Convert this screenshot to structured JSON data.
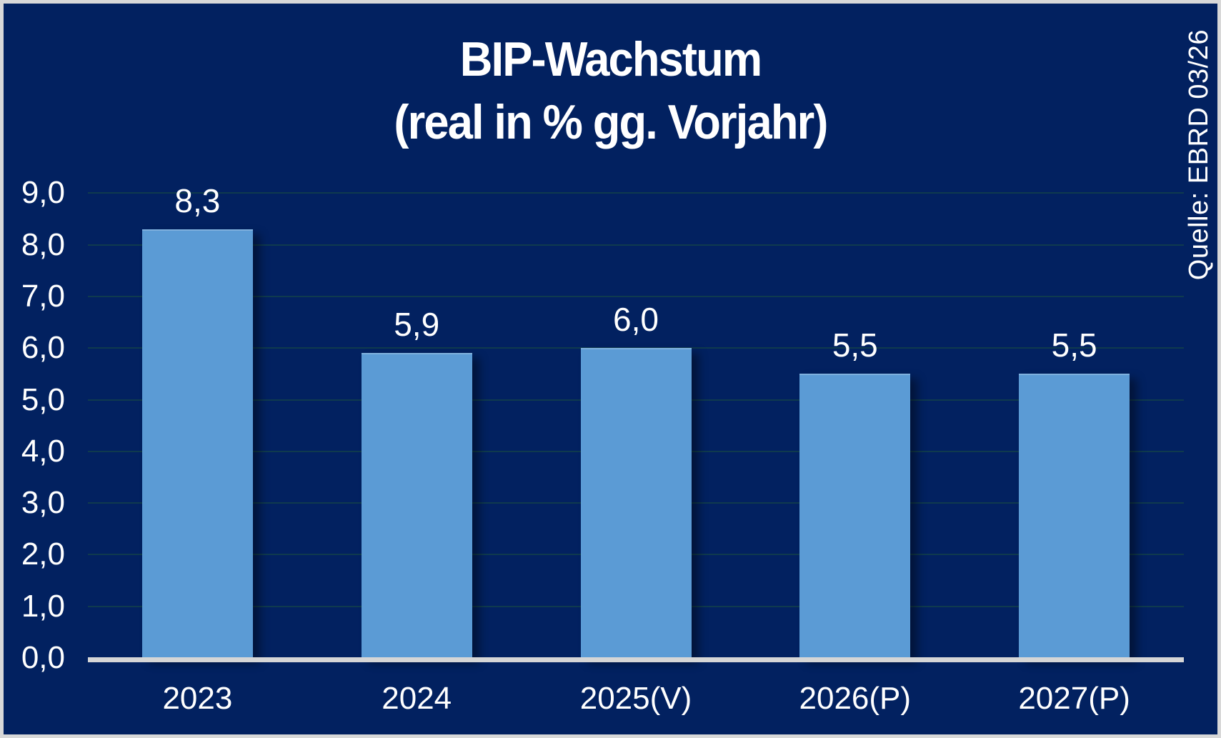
{
  "frame": {
    "background_color": "#022160",
    "border_color": "#d8d8d8"
  },
  "title": {
    "line1": "BIP-Wachstum",
    "line2": "(real in % gg. Vorjahr)"
  },
  "source_note": "Quelle: EBRD 03/26",
  "chart_data": {
    "type": "bar",
    "title": "BIP-Wachstum (real in % gg. Vorjahr)",
    "categories": [
      "2023",
      "2024",
      "2025(V)",
      "2026(P)",
      "2027(P)"
    ],
    "values": [
      8.3,
      5.9,
      6.0,
      5.5,
      5.5
    ],
    "value_labels": [
      "8,3",
      "5,9",
      "6,0",
      "5,5",
      "5,5"
    ],
    "xlabel": "",
    "ylabel": "",
    "ylim": [
      0,
      9
    ],
    "ytick_step": 1,
    "ytick_labels": [
      "0,0",
      "1,0",
      "2,0",
      "3,0",
      "4,0",
      "5,0",
      "6,0",
      "7,0",
      "8,0",
      "9,0"
    ],
    "grid": true,
    "legend": "none",
    "bar_color": "#5b9bd5",
    "gridline_color": "#0f3a4e",
    "axis_line_color": "#d6d6d6",
    "text_color": "#ffffff"
  }
}
